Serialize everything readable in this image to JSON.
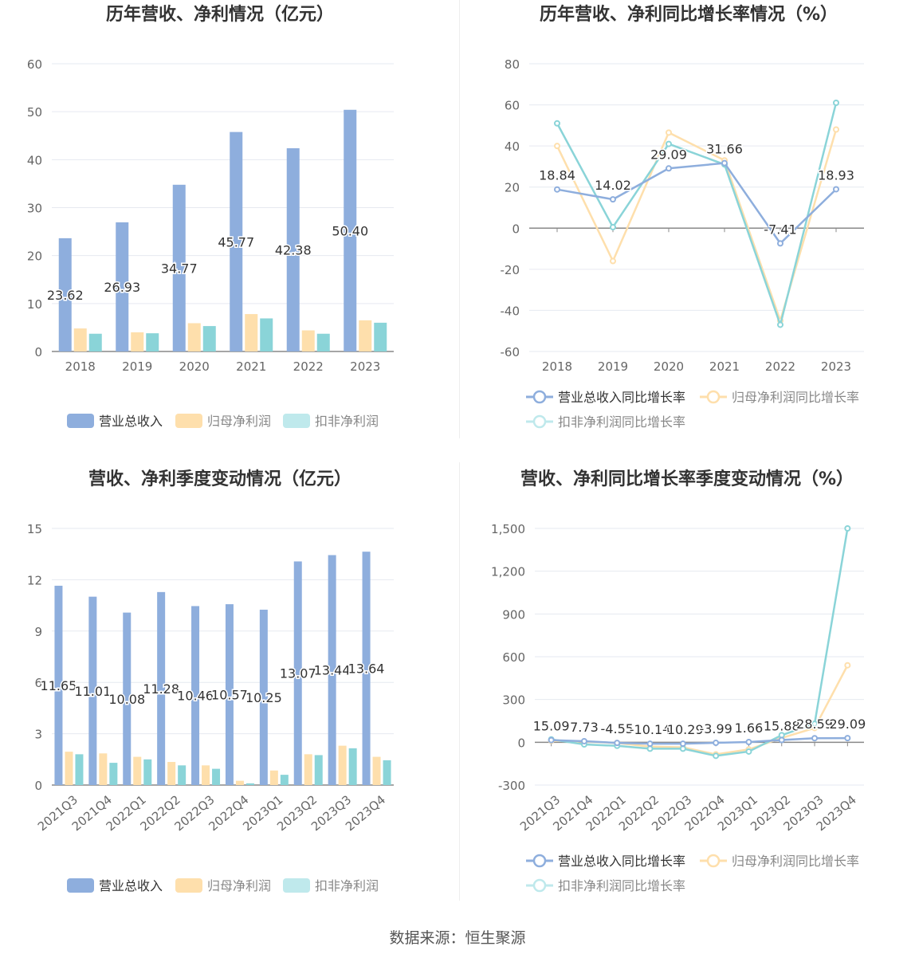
{
  "source": "数据来源：恒生聚源",
  "colors": {
    "revenue": "#8eaedd",
    "netprofit": "#fedfac",
    "deducted": "#8ad4d8",
    "revenue_legend": "#8eaedd",
    "netprofit_legend": "#fedfac",
    "deducted_legend": "#bfe9ec",
    "grid": "#e6e9f0",
    "axis": "#666666",
    "zero_axis": "#888888"
  },
  "chart_data": [
    {
      "id": "annual-bar",
      "type": "bar",
      "title": "历年营收、净利情况（亿元）",
      "categories": [
        "2018",
        "2019",
        "2020",
        "2021",
        "2022",
        "2023"
      ],
      "series": [
        {
          "name": "营业总收入",
          "values": [
            23.62,
            26.93,
            34.77,
            45.77,
            42.38,
            50.4
          ],
          "labels": [
            "23.62",
            "26.93",
            "34.77",
            "45.77",
            "42.38",
            "50.40"
          ]
        },
        {
          "name": "归母净利润",
          "values": [
            4.8,
            4.0,
            5.9,
            7.8,
            4.4,
            6.5
          ]
        },
        {
          "name": "扣非净利润",
          "values": [
            3.7,
            3.8,
            5.3,
            6.9,
            3.7,
            6.0
          ]
        }
      ],
      "yticks": [
        "0",
        "10",
        "20",
        "30",
        "40",
        "50",
        "60"
      ],
      "ylim": [
        0,
        60
      ]
    },
    {
      "id": "annual-line",
      "type": "line",
      "title": "历年营收、净利同比增长率情况（%）",
      "categories": [
        "2018",
        "2019",
        "2020",
        "2021",
        "2022",
        "2023"
      ],
      "series": [
        {
          "name": "营业总收入同比增长率",
          "values": [
            18.84,
            14.02,
            29.09,
            31.66,
            -7.41,
            18.93
          ],
          "labels": [
            "18.84",
            "14.02",
            "29.09",
            "31.66",
            "-7.41",
            "18.93"
          ]
        },
        {
          "name": "归母净利润同比增长率",
          "values": [
            40.0,
            -16.0,
            46.5,
            33.0,
            -45.0,
            48.0
          ]
        },
        {
          "name": "扣非净利润同比增长率",
          "values": [
            51.0,
            0.5,
            41.0,
            31.0,
            -47.0,
            61.0
          ]
        }
      ],
      "yticks": [
        "-60",
        "-40",
        "-20",
        "0",
        "20",
        "40",
        "60",
        "80"
      ],
      "ylim": [
        -60,
        80
      ]
    },
    {
      "id": "quarter-bar",
      "type": "bar",
      "title": "营收、净利季度变动情况（亿元）",
      "categories": [
        "2021Q3",
        "2021Q4",
        "2022Q1",
        "2022Q2",
        "2022Q3",
        "2022Q4",
        "2023Q1",
        "2023Q2",
        "2023Q3",
        "2023Q4"
      ],
      "series": [
        {
          "name": "营业总收入",
          "values": [
            11.65,
            11.01,
            10.08,
            11.28,
            10.46,
            10.57,
            10.25,
            13.07,
            13.44,
            13.64
          ],
          "labels": [
            "11.65",
            "11.01",
            "10.08",
            "11.28",
            "10.46",
            "10.57",
            "10.25",
            "13.07",
            "13.44",
            "13.64"
          ]
        },
        {
          "name": "归母净利润",
          "values": [
            1.95,
            1.85,
            1.65,
            1.35,
            1.15,
            0.25,
            0.85,
            1.8,
            2.3,
            1.65
          ]
        },
        {
          "name": "扣非净利润",
          "values": [
            1.8,
            1.3,
            1.5,
            1.15,
            0.95,
            0.1,
            0.6,
            1.75,
            2.15,
            1.45
          ]
        }
      ],
      "yticks": [
        "0",
        "3",
        "6",
        "9",
        "12",
        "15"
      ],
      "ylim": [
        0,
        15
      ]
    },
    {
      "id": "quarter-line",
      "type": "line",
      "title": "营收、净利同比增长率季度变动情况（%）",
      "categories": [
        "2021Q3",
        "2021Q4",
        "2022Q1",
        "2022Q2",
        "2022Q3",
        "2022Q4",
        "2023Q1",
        "2023Q2",
        "2023Q3",
        "2023Q4"
      ],
      "series": [
        {
          "name": "营业总收入同比增长率",
          "values": [
            15.09,
            7.73,
            -4.55,
            -10.14,
            -10.29,
            -3.99,
            1.66,
            15.88,
            28.59,
            29.09
          ],
          "labels": [
            "15.09",
            "7.73",
            "-4.55",
            "-10.14",
            "-10.29",
            "-3.99",
            "1.66",
            "15.88",
            "28.59",
            "29.09"
          ]
        },
        {
          "name": "归母净利润同比增长率",
          "values": [
            10,
            5,
            -5,
            -30,
            -35,
            -85,
            -50,
            30,
            100,
            540
          ]
        },
        {
          "name": "扣非净利润同比增长率",
          "values": [
            20,
            -15,
            -25,
            -45,
            -45,
            -95,
            -65,
            50,
            130,
            1500
          ]
        }
      ],
      "yticks": [
        "-300",
        "0",
        "300",
        "600",
        "900",
        "1,200",
        "1,500"
      ],
      "ylim": [
        -300,
        1500
      ]
    }
  ]
}
